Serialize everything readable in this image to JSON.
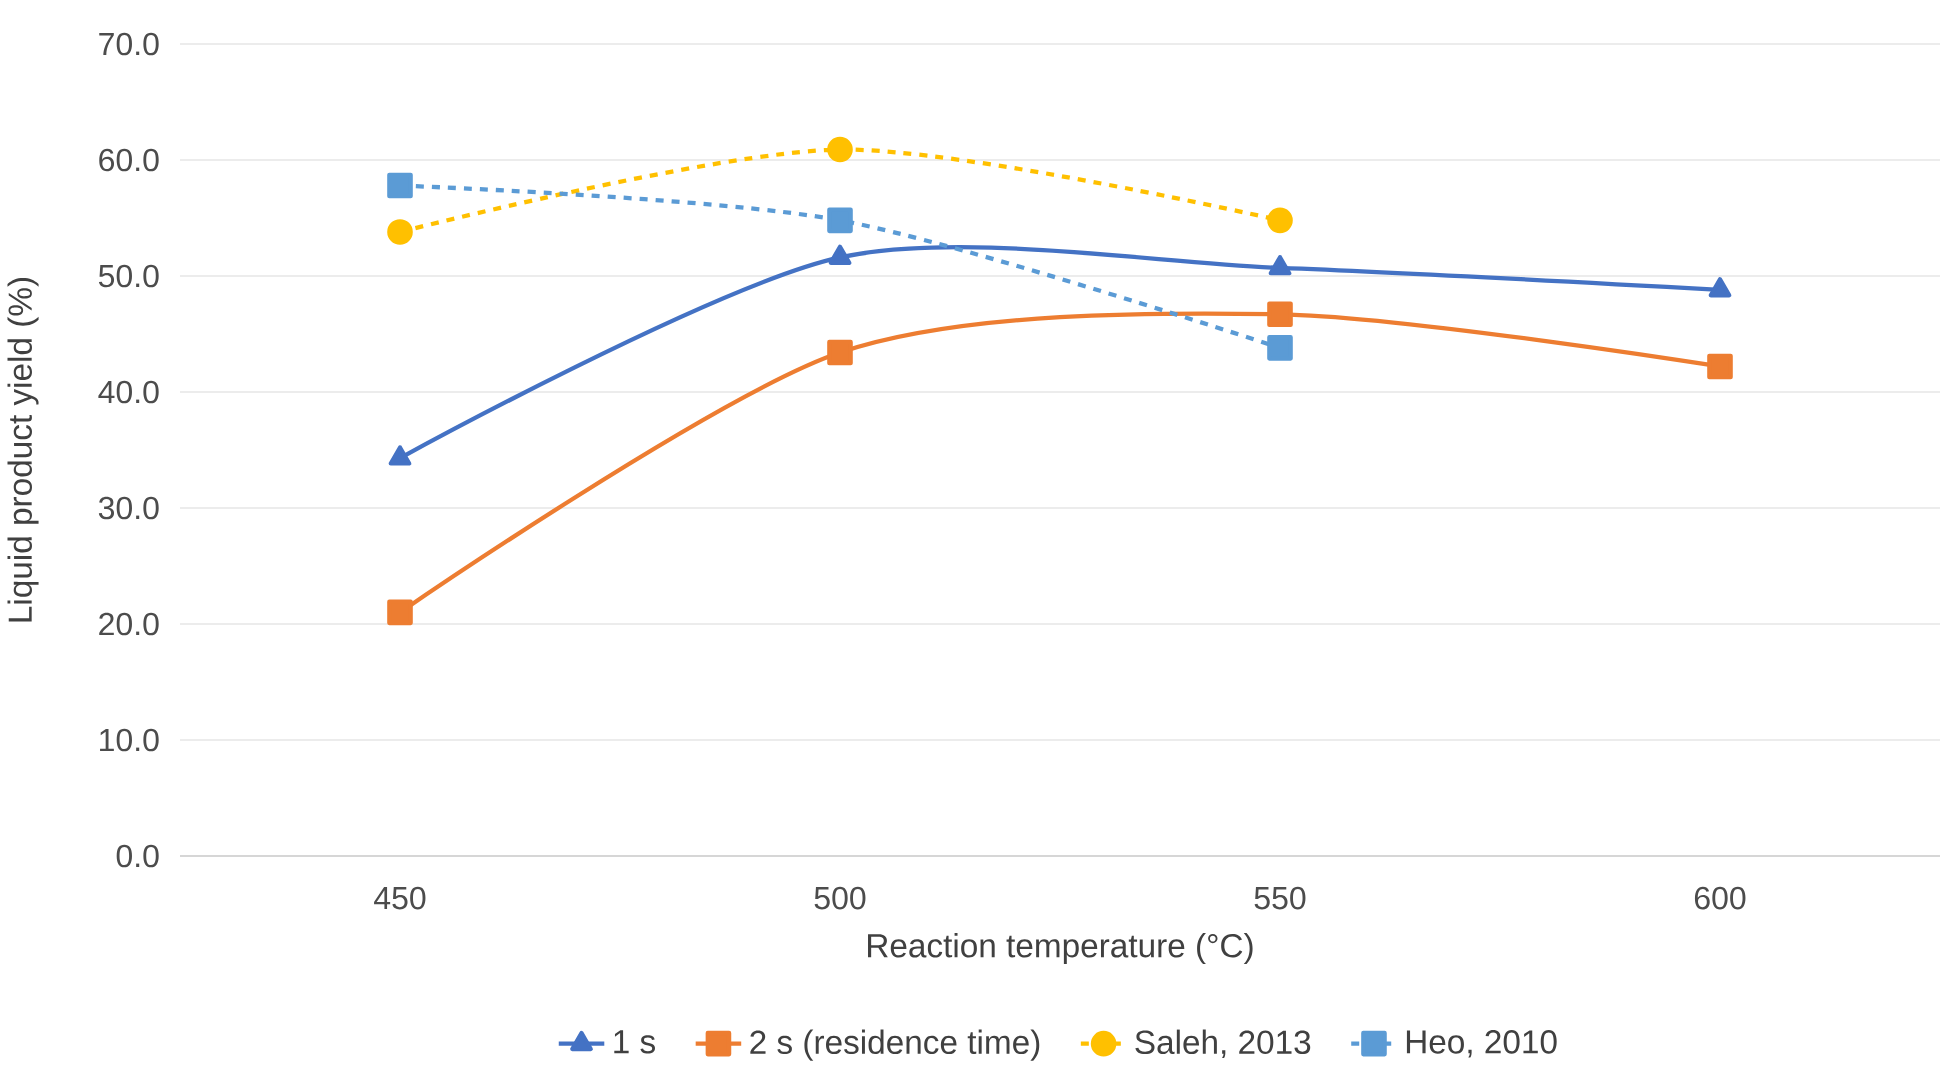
{
  "chart_data": {
    "type": "line",
    "xlabel": "Reaction temperature (°C)",
    "ylabel": "Liquid product yield (%)",
    "categories": [
      "450",
      "500",
      "550",
      "600"
    ],
    "series": [
      {
        "name": "1 s",
        "color": "#4472c4",
        "values": [
          34.3,
          51.6,
          50.7,
          48.8
        ],
        "marker": "triangle",
        "line_style": "solid"
      },
      {
        "name": "2 s (residence time)",
        "color": "#ed7d31",
        "values": [
          21.0,
          43.4,
          46.7,
          42.2
        ],
        "marker": "square",
        "line_style": "solid"
      },
      {
        "name": "Saleh, 2013",
        "color": "#ffc000",
        "values": [
          53.8,
          60.9,
          54.8,
          null
        ],
        "marker": "circle",
        "line_style": "dashed"
      },
      {
        "name": "Heo, 2010",
        "color": "#5b9bd5",
        "values": [
          57.8,
          54.8,
          43.8,
          null
        ],
        "marker": "square",
        "line_style": "dashed"
      }
    ],
    "ylim": [
      0,
      70
    ],
    "yticks": [
      {
        "value": 0,
        "label": "0.0"
      },
      {
        "value": 10,
        "label": "10.0"
      },
      {
        "value": 20,
        "label": "20.0"
      },
      {
        "value": 30,
        "label": "30.0"
      },
      {
        "value": 40,
        "label": "40.0"
      },
      {
        "value": 50,
        "label": "50.0"
      },
      {
        "value": 60,
        "label": "60.0"
      },
      {
        "value": 70,
        "label": "70.0"
      }
    ],
    "grid": "y",
    "legend": "bottom"
  }
}
